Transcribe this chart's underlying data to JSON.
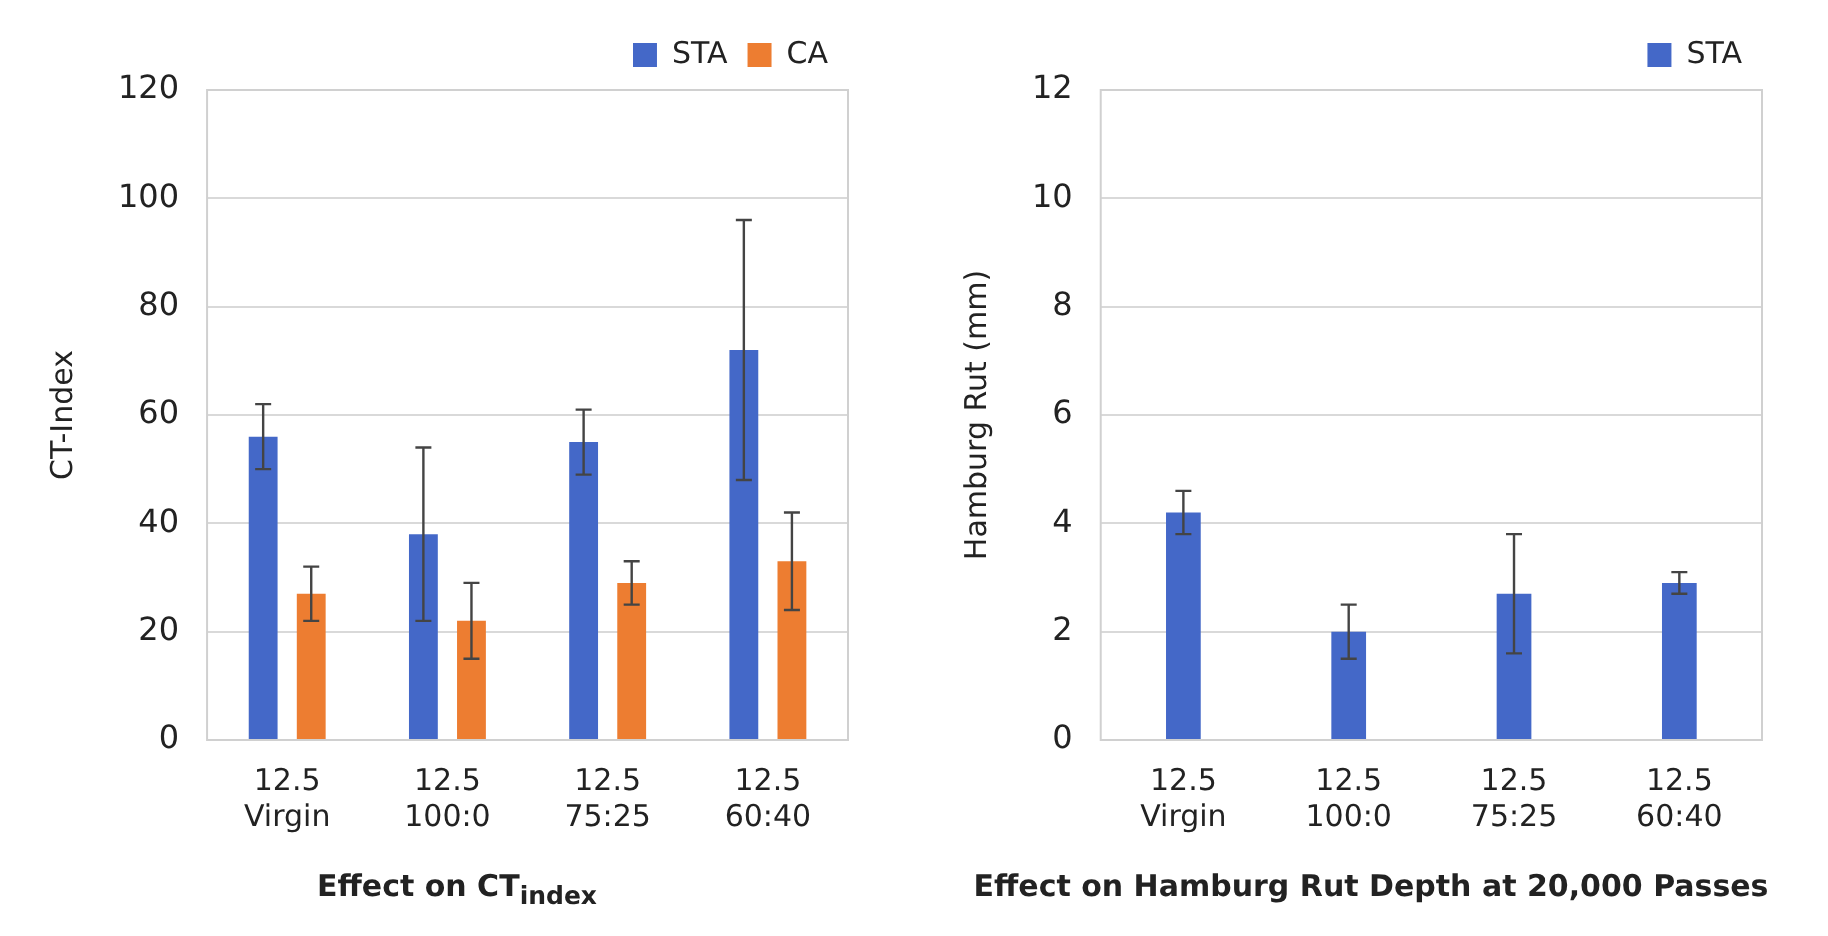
{
  "chart_data": [
    {
      "type": "bar",
      "title": "Effect on CT$_{index}$",
      "ylabel": "CT-Index",
      "categories": [
        "12.5\nVirgin",
        "12.5\n100:0",
        "12.5\n75:25",
        "12.5\n60:40"
      ],
      "ylim": [
        0,
        120
      ],
      "yticks": [
        0,
        20,
        40,
        60,
        80,
        100,
        120
      ],
      "grid": "y",
      "legend": "top right",
      "series": [
        {
          "name": "STA",
          "color": "#4468c8",
          "values": [
            56,
            38,
            55,
            72
          ],
          "errors": [
            [
              50,
              62
            ],
            [
              22,
              54
            ],
            [
              49,
              61
            ],
            [
              48,
              96
            ]
          ]
        },
        {
          "name": "CA",
          "color": "#ed7d31",
          "values": [
            27,
            22,
            29,
            33
          ],
          "errors": [
            [
              22,
              32
            ],
            [
              15,
              29
            ],
            [
              25,
              33
            ],
            [
              24,
              42
            ]
          ]
        }
      ]
    },
    {
      "type": "bar",
      "title": "Effect on Hamburg Rut Depth at 20,000 Passes",
      "ylabel": "Hamburg Rut (mm)",
      "categories": [
        "12.5\nVirgin",
        "12.5\n100:0",
        "12.5\n75:25",
        "12.5\n60:40"
      ],
      "ylim": [
        0,
        12
      ],
      "yticks": [
        0,
        2,
        4,
        6,
        8,
        10,
        12
      ],
      "grid": "y",
      "legend": "top right",
      "series": [
        {
          "name": "STA",
          "color": "#4468c8",
          "values": [
            4.2,
            2.0,
            2.7,
            2.9
          ],
          "errors": [
            [
              3.8,
              4.6
            ],
            [
              1.5,
              2.5
            ],
            [
              1.6,
              3.8
            ],
            [
              2.7,
              3.1
            ]
          ]
        }
      ]
    }
  ]
}
